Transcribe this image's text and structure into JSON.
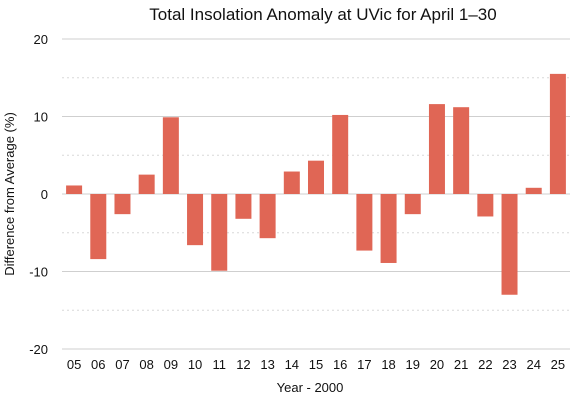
{
  "chart_data": {
    "type": "bar",
    "title": "Total Insolation Anomaly at UVic for April 1–30",
    "xlabel": "Year - 2000",
    "ylabel": "Difference from Average (%)",
    "ylim": [
      -20,
      20
    ],
    "yticks": [
      "20",
      "10",
      "0",
      "-10",
      "-20"
    ],
    "grid": true,
    "categories": [
      "05",
      "06",
      "07",
      "08",
      "09",
      "10",
      "11",
      "12",
      "13",
      "14",
      "15",
      "16",
      "17",
      "18",
      "19",
      "20",
      "21",
      "22",
      "23",
      "24",
      "25"
    ],
    "values": [
      1.1,
      -8.4,
      -2.6,
      2.5,
      9.9,
      -6.6,
      -9.9,
      -3.2,
      -5.7,
      2.9,
      4.3,
      10.2,
      -7.3,
      -8.9,
      -2.6,
      11.6,
      11.2,
      -2.9,
      -13.0,
      0.8,
      15.5
    ],
    "bar_color": "#e06655",
    "grid_color": "#cfcfcf"
  }
}
